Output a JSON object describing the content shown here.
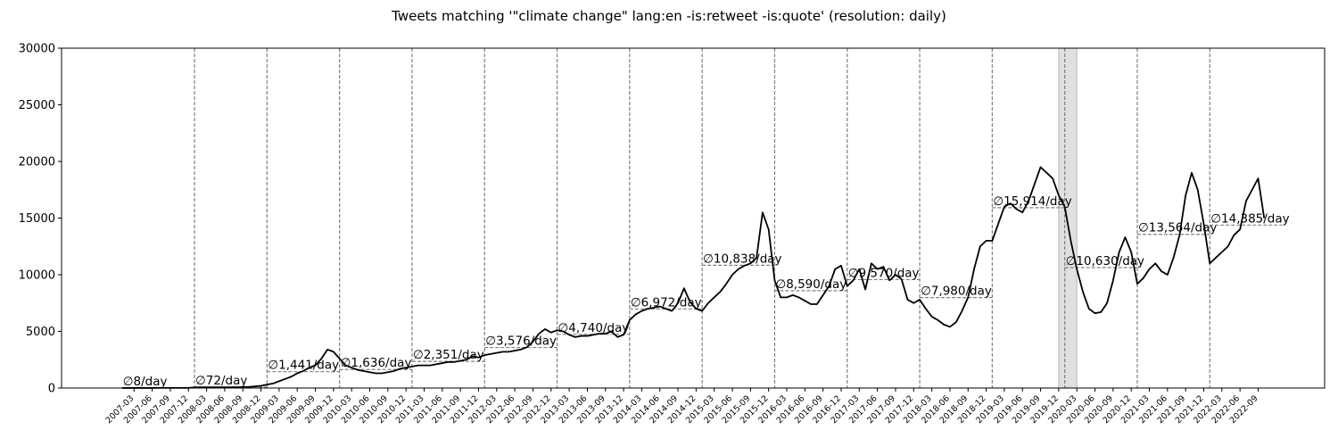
{
  "chart_data": {
    "type": "line",
    "title": "Tweets matching '\"climate change\" lang:en -is:retweet -is:quote' (resolution: daily)",
    "xlim": [
      "2006-03",
      "2023-08"
    ],
    "ylim": [
      0,
      30000
    ],
    "yticks": [
      0,
      5000,
      10000,
      15000,
      20000,
      25000,
      30000
    ],
    "xticks": [
      "2007-03",
      "2007-06",
      "2007-09",
      "2007-12",
      "2008-03",
      "2008-06",
      "2008-09",
      "2008-12",
      "2009-03",
      "2009-06",
      "2009-09",
      "2009-12",
      "2010-03",
      "2010-06",
      "2010-09",
      "2010-12",
      "2011-03",
      "2011-06",
      "2011-09",
      "2011-12",
      "2012-03",
      "2012-06",
      "2012-09",
      "2012-12",
      "2013-03",
      "2013-06",
      "2013-09",
      "2013-12",
      "2014-03",
      "2014-06",
      "2014-09",
      "2014-12",
      "2015-03",
      "2015-06",
      "2015-09",
      "2015-12",
      "2016-03",
      "2016-06",
      "2016-09",
      "2016-12",
      "2017-03",
      "2017-06",
      "2017-09",
      "2017-12",
      "2018-03",
      "2018-06",
      "2018-09",
      "2018-12",
      "2019-03",
      "2019-06",
      "2019-09",
      "2019-12",
      "2020-03",
      "2020-06",
      "2020-09",
      "2020-12",
      "2021-03",
      "2021-06",
      "2021-09",
      "2021-12",
      "2022-03",
      "2022-06",
      "2022-09"
    ],
    "x": [
      "2007-01",
      "2007-02",
      "2007-03",
      "2007-04",
      "2007-05",
      "2007-06",
      "2007-07",
      "2007-08",
      "2007-09",
      "2007-10",
      "2007-11",
      "2007-12",
      "2008-01",
      "2008-02",
      "2008-03",
      "2008-04",
      "2008-05",
      "2008-06",
      "2008-07",
      "2008-08",
      "2008-09",
      "2008-10",
      "2008-11",
      "2008-12",
      "2009-01",
      "2009-02",
      "2009-03",
      "2009-04",
      "2009-05",
      "2009-06",
      "2009-07",
      "2009-08",
      "2009-09",
      "2009-10",
      "2009-11",
      "2009-12",
      "2010-01",
      "2010-02",
      "2010-03",
      "2010-04",
      "2010-05",
      "2010-06",
      "2010-07",
      "2010-08",
      "2010-09",
      "2010-10",
      "2010-11",
      "2010-12",
      "2011-01",
      "2011-02",
      "2011-03",
      "2011-04",
      "2011-05",
      "2011-06",
      "2011-07",
      "2011-08",
      "2011-09",
      "2011-10",
      "2011-11",
      "2011-12",
      "2012-01",
      "2012-02",
      "2012-03",
      "2012-04",
      "2012-05",
      "2012-06",
      "2012-07",
      "2012-08",
      "2012-09",
      "2012-10",
      "2012-11",
      "2012-12",
      "2013-01",
      "2013-02",
      "2013-03",
      "2013-04",
      "2013-05",
      "2013-06",
      "2013-07",
      "2013-08",
      "2013-09",
      "2013-10",
      "2013-11",
      "2013-12",
      "2014-01",
      "2014-02",
      "2014-03",
      "2014-04",
      "2014-05",
      "2014-06",
      "2014-07",
      "2014-08",
      "2014-09",
      "2014-10",
      "2014-11",
      "2014-12",
      "2015-01",
      "2015-02",
      "2015-03",
      "2015-04",
      "2015-05",
      "2015-06",
      "2015-07",
      "2015-08",
      "2015-09",
      "2015-10",
      "2015-11",
      "2015-12",
      "2016-01",
      "2016-02",
      "2016-03",
      "2016-04",
      "2016-05",
      "2016-06",
      "2016-07",
      "2016-08",
      "2016-09",
      "2016-10",
      "2016-11",
      "2016-12",
      "2017-01",
      "2017-02",
      "2017-03",
      "2017-04",
      "2017-05",
      "2017-06",
      "2017-07",
      "2017-08",
      "2017-09",
      "2017-10",
      "2017-11",
      "2017-12",
      "2018-01",
      "2018-02",
      "2018-03",
      "2018-04",
      "2018-05",
      "2018-06",
      "2018-07",
      "2018-08",
      "2018-09",
      "2018-10",
      "2018-11",
      "2018-12",
      "2019-01",
      "2019-02",
      "2019-03",
      "2019-04",
      "2019-05",
      "2019-06",
      "2019-07",
      "2019-08",
      "2019-09",
      "2019-10",
      "2019-11",
      "2019-12",
      "2020-01",
      "2020-02",
      "2020-03",
      "2020-04",
      "2020-05",
      "2020-06",
      "2020-07",
      "2020-08",
      "2020-09",
      "2020-10",
      "2020-11",
      "2020-12",
      "2021-01",
      "2021-02",
      "2021-03",
      "2021-04",
      "2021-05",
      "2021-06",
      "2021-07",
      "2021-08",
      "2021-09",
      "2021-10",
      "2021-11",
      "2021-12",
      "2022-01",
      "2022-02",
      "2022-03",
      "2022-04",
      "2022-05",
      "2022-06",
      "2022-07",
      "2022-08",
      "2022-09",
      "2022-10"
    ],
    "series": [
      {
        "color": "#000000",
        "values": [
          5,
          5,
          5,
          5,
          6,
          6,
          7,
          8,
          9,
          10,
          10,
          12,
          60,
          65,
          70,
          70,
          70,
          72,
          72,
          75,
          80,
          100,
          150,
          200,
          300,
          400,
          600,
          800,
          1000,
          1300,
          1500,
          1800,
          2000,
          2600,
          3400,
          3200,
          2600,
          2000,
          1800,
          1600,
          1500,
          1400,
          1300,
          1300,
          1400,
          1500,
          1700,
          1800,
          1900,
          2000,
          2000,
          2000,
          2100,
          2200,
          2300,
          2300,
          2400,
          2500,
          2800,
          2700,
          2900,
          3000,
          3100,
          3200,
          3200,
          3300,
          3400,
          3600,
          4100,
          4800,
          5200,
          4900,
          5100,
          5000,
          4700,
          4500,
          4600,
          4600,
          4700,
          4800,
          4800,
          5000,
          4500,
          4700,
          6000,
          6500,
          6800,
          7000,
          7100,
          7200,
          7000,
          6800,
          7500,
          8800,
          7600,
          7000,
          6800,
          7500,
          8000,
          8500,
          9200,
          10000,
          10500,
          10800,
          11000,
          11500,
          15500,
          14000,
          9500,
          8000,
          8000,
          8200,
          8000,
          7700,
          7400,
          7400,
          8200,
          9000,
          10500,
          10800,
          9000,
          9500,
          10500,
          8700,
          11000,
          10500,
          10700,
          9500,
          10000,
          9600,
          7800,
          7500,
          7800,
          7000,
          6300,
          6000,
          5600,
          5400,
          5800,
          6800,
          8000,
          10500,
          12500,
          13000,
          13000,
          14500,
          16000,
          16300,
          15800,
          15500,
          16500,
          18000,
          19500,
          19000,
          18500,
          17000,
          16000,
          13000,
          10500,
          8500,
          7000,
          6600,
          6700,
          7500,
          9500,
          12000,
          13300,
          12000,
          9200,
          9700,
          10500,
          11000,
          10300,
          10000,
          11500,
          13500,
          17000,
          19000,
          17500,
          14500,
          11000,
          11500,
          12000,
          12500,
          13500,
          14000,
          16500,
          17500,
          18500,
          15000
        ]
      }
    ],
    "annual_means": {
      "color": "#808080",
      "x": [
        "2007",
        "2008",
        "2009",
        "2010",
        "2011",
        "2012",
        "2013",
        "2014",
        "2015",
        "2016",
        "2017",
        "2018",
        "2019",
        "2020",
        "2021",
        "2022"
      ],
      "values": [
        8,
        72,
        1441,
        1636,
        2351,
        3576,
        4740,
        6972,
        10838,
        8590,
        9570,
        7980,
        15914,
        10630,
        13564,
        14385
      ],
      "value_labels": [
        "∅8/day",
        "∅72/day",
        "∅1,441/day",
        "∅1,636/day",
        "∅2,351/day",
        "∅3,576/day",
        "∅4,740/day",
        "∅6,972/day",
        "∅10,838/day",
        "∅8,590/day",
        "∅9,570/day",
        "∅7,980/day",
        "∅15,914/day",
        "∅10,630/day",
        "∅13,564/day",
        "∅14,385/day"
      ]
    },
    "shaded_span": [
      "2019-12",
      "2020-03"
    ]
  }
}
